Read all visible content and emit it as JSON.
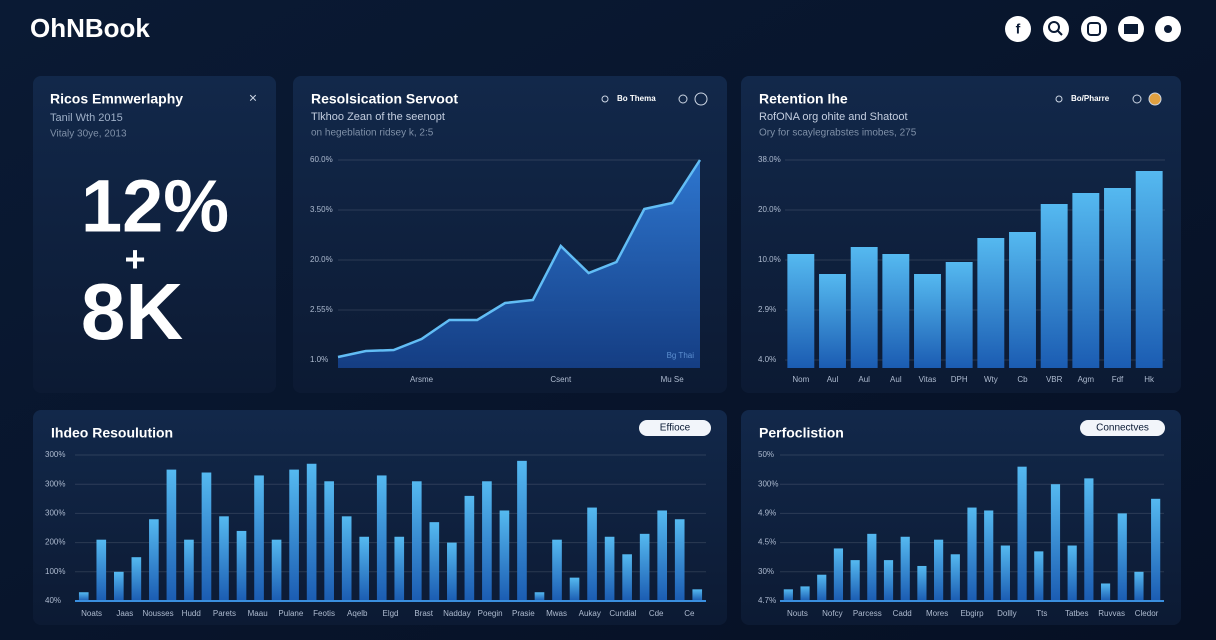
{
  "header": {
    "logo": "OhNBook"
  },
  "stat_card": {
    "title": "Ricos Emnwerlaphy",
    "subtitle": "Tanil Wth 2015",
    "note": "Vitaly 30ye, 2013",
    "value1": "12%",
    "plus": "+",
    "value2": "8K"
  },
  "panels": [
    {
      "title": "Resolsication Servoot",
      "subtitle": "Tlkhoo Zean of the seenopt",
      "note": "on hegeblation ridsey k, 2:5",
      "control": "Bo Thema",
      "y_labels": [
        "60.0%",
        "3.50%",
        "20.0%",
        "2.55%",
        "1.0%"
      ],
      "chart": {
        "type": "area",
        "categories": [
          null,
          null,
          null,
          "Arsme",
          null,
          null,
          null,
          null,
          "Csent",
          null,
          null,
          null,
          "Mu Se",
          null
        ],
        "values": [
          0.06,
          0.18,
          0.2,
          0.42,
          0.8,
          0.8,
          1.14,
          1.2,
          2.28,
          1.74,
          1.96,
          3.02,
          3.14,
          4.0
        ],
        "ylim": [
          0,
          4
        ],
        "annotation": "Bg Thai"
      }
    },
    {
      "title": "Retention Ihe",
      "subtitle": "RofONA org ohite and Shatoot",
      "note": "Ory for scaylegrabstes imobes, 275",
      "control": "Bo/Pharre",
      "y_labels": [
        "38.0%",
        "20.0%",
        "10.0%",
        "2.9%",
        "4.0%"
      ],
      "chart": {
        "type": "bar",
        "categories": [
          "Nom",
          "Aul",
          "Aul",
          "Aul",
          "Vitas",
          "DPH",
          "Wty",
          "Cb",
          "VBR",
          "Agm",
          "Fdf",
          "Hk"
        ],
        "values": [
          2.12,
          1.72,
          2.26,
          2.12,
          1.72,
          1.96,
          2.44,
          2.56,
          3.12,
          3.34,
          3.44,
          3.78
        ],
        "ylim": [
          0,
          4
        ]
      }
    },
    {
      "title": "Ihdeo Resoulution",
      "button": "Effioce",
      "y_labels": [
        "300%",
        "300%",
        "300%",
        "200%",
        "100%",
        "40%"
      ],
      "x_labels": [
        "Noats",
        "Jaas",
        "Nousses",
        "Hudd",
        "Parets",
        "Maau",
        "Pulane",
        "Feotis",
        "Aqelb",
        "Elgd",
        "Brast",
        "Nadday",
        "Poegin",
        "Prasie",
        "Mwas",
        "Aukay",
        "Cundial",
        "Cde",
        "Ce"
      ],
      "chart": {
        "type": "bar",
        "values": [
          0.3,
          2.1,
          1.0,
          1.5,
          2.8,
          4.5,
          2.1,
          4.4,
          2.9,
          2.4,
          4.3,
          2.1,
          4.5,
          4.7,
          4.1,
          2.9,
          2.2,
          4.3,
          2.2,
          4.1,
          2.7,
          2.0,
          3.6,
          4.1,
          3.1,
          4.8,
          0.3,
          2.1,
          0.8,
          3.2,
          2.2,
          1.6,
          2.3,
          3.1,
          2.8,
          0.4
        ],
        "ylim": [
          0,
          5
        ]
      }
    },
    {
      "title": "Perfoclistion",
      "button": "Connectves",
      "y_labels": [
        "50%",
        "300%",
        "4.9%",
        "4.5%",
        "30%",
        "4.7%"
      ],
      "x_labels": [
        "Nouts",
        "Nofcy",
        "Parcess",
        "Cadd",
        "Mores",
        "Ebgirp",
        "Dollly",
        "Tts",
        "Tatbes",
        "Ruvvas",
        "Cledor"
      ],
      "chart": {
        "type": "bar",
        "values": [
          0.4,
          0.5,
          0.9,
          1.8,
          1.4,
          2.3,
          1.4,
          2.2,
          1.2,
          2.1,
          1.6,
          3.2,
          3.1,
          1.9,
          4.6,
          1.7,
          4.0,
          1.9,
          4.2,
          0.6,
          3.0,
          1.0,
          3.5
        ],
        "ylim": [
          0,
          5
        ]
      }
    }
  ]
}
